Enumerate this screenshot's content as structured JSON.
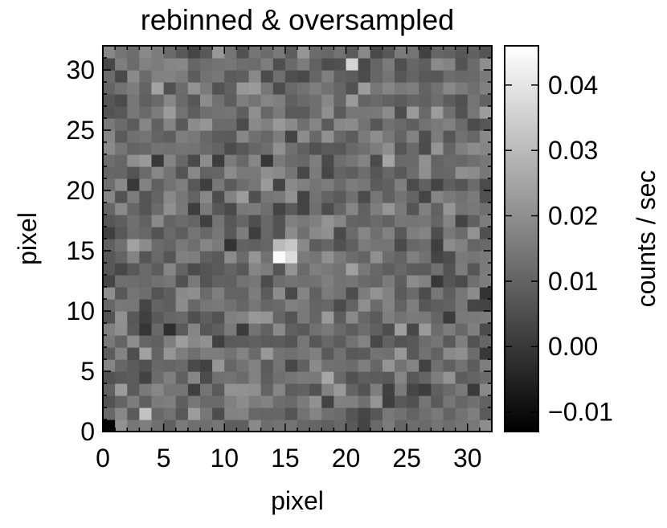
{
  "chart_data": {
    "type": "heatmap",
    "title": "rebinned & oversampled",
    "xlabel": "pixel",
    "ylabel": "pixel",
    "colorbar_label": "counts / sec",
    "colormap": "grayscale",
    "colors": {
      "low": "#000000",
      "high": "#ffffff",
      "background": "#ffffff",
      "axis": "#000000"
    },
    "grid": false,
    "xlim": [
      0,
      32
    ],
    "ylim": [
      0,
      32
    ],
    "x_ticks": [
      0,
      5,
      10,
      15,
      20,
      25,
      30
    ],
    "y_ticks": [
      0,
      5,
      10,
      15,
      20,
      25,
      30
    ],
    "x_tick_labels": [
      "0",
      "5",
      "10",
      "15",
      "20",
      "25",
      "30"
    ],
    "y_tick_labels": [
      "0",
      "5",
      "10",
      "15",
      "20",
      "25",
      "30"
    ],
    "colorbar_range": [
      -0.013,
      0.046
    ],
    "colorbar_ticks": [
      -0.01,
      0.0,
      0.01,
      0.02,
      0.03,
      0.04
    ],
    "colorbar_tick_labels": [
      "−0.01",
      "0.00",
      "0.01",
      "0.02",
      "0.03",
      "0.04"
    ],
    "grid_size": [
      32,
      32
    ],
    "features": [
      {
        "x": 14.5,
        "y": 14.5,
        "value": 0.045
      },
      {
        "x": 15.5,
        "y": 14.5,
        "value": 0.038
      },
      {
        "x": 15.5,
        "y": 15.5,
        "value": 0.033
      },
      {
        "x": 14.5,
        "y": 15.5,
        "value": 0.03
      },
      {
        "x": 0.5,
        "y": 0.5,
        "value": -0.012
      },
      {
        "x": 20.5,
        "y": 30.5,
        "value": 0.036
      },
      {
        "x": 3.5,
        "y": 1.5,
        "value": 0.032
      }
    ],
    "background_value": 0.012
  }
}
